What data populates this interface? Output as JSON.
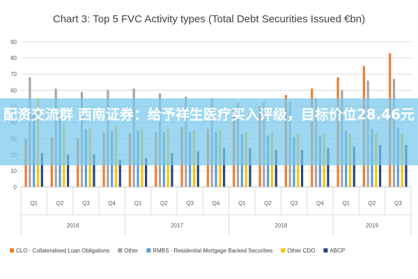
{
  "chart_data": {
    "type": "bar",
    "title": "Chart 3: Top 5 FVC Activity types (Total Debt Securities Issued €bn)",
    "ylim": [
      0,
      90
    ],
    "yticks": [
      0,
      10,
      20,
      30,
      40,
      50,
      60,
      70,
      80,
      90
    ],
    "grid": true,
    "legend_position": "bottom",
    "categories": [
      "Q1",
      "Q2",
      "Q3",
      "Q4",
      "Q1",
      "Q2",
      "Q3",
      "Q4",
      "Q1",
      "Q2",
      "Q3",
      "Q4",
      "Q1",
      "Q2",
      "Q3"
    ],
    "groups": [
      {
        "label": "2016",
        "count": 4
      },
      {
        "label": "2017",
        "count": 4
      },
      {
        "label": "2018",
        "count": 4
      },
      {
        "label": "2019",
        "count": 3
      }
    ],
    "series": [
      {
        "name": "CLO - Collateralised Loan Obligations",
        "color": "#ed7d31",
        "values": [
          30,
          31,
          30,
          34,
          33,
          34,
          37,
          36,
          49,
          50,
          57,
          61,
          68,
          75,
          83
        ]
      },
      {
        "name": "Other",
        "color": "#a5a5a5",
        "values": [
          68,
          61,
          59,
          60,
          61,
          58,
          56,
          55,
          52,
          53,
          53,
          55,
          60,
          66,
          67
        ]
      },
      {
        "name": "RMBS - Residential Mortgage Backed Securities",
        "color": "#5b9bd5",
        "values": [
          46,
          45,
          36,
          35,
          35,
          34,
          34,
          34,
          33,
          32,
          31,
          32,
          35,
          36,
          37
        ]
      },
      {
        "name": "Other CDO",
        "color": "#ffc000",
        "values": [
          55,
          39,
          36,
          38,
          36,
          36,
          35,
          35,
          34,
          34,
          33,
          33,
          33,
          33,
          33
        ]
      },
      {
        "name": "ABCP",
        "color": "#264478",
        "values": [
          21,
          20,
          20,
          17,
          18,
          21,
          22,
          24,
          24,
          23,
          23,
          24,
          25,
          26,
          26
        ]
      }
    ]
  },
  "overlay_text": "配资交流群 西南证券：给予祥生医疗买入评级，目标价位28.46元"
}
